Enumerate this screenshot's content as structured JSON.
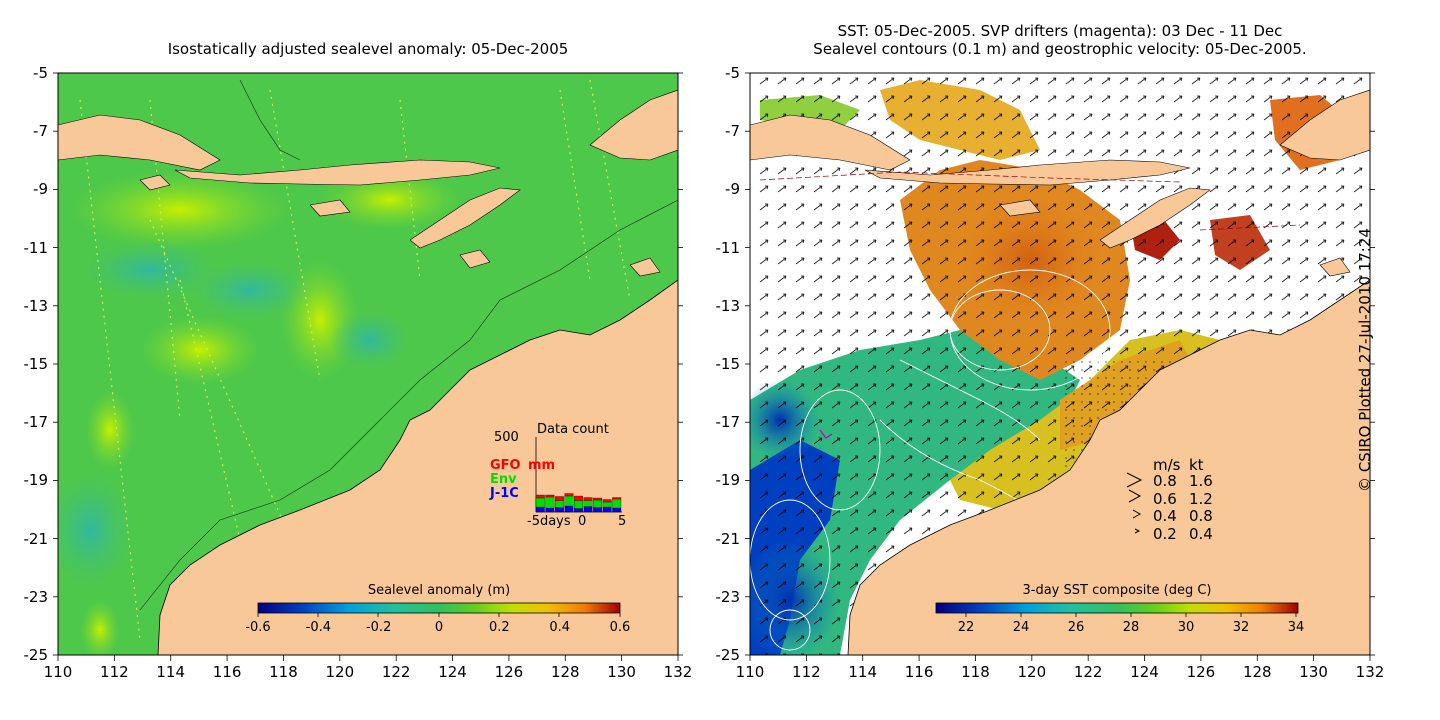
{
  "left_panel": {
    "title": "Isostatically adjusted sealevel anomaly: 05-Dec-2005",
    "colorbar_label": "Sealevel anomaly (m)",
    "colorbar_ticks": [
      "-0.6",
      "-0.4",
      "-0.2",
      "0",
      "0.2",
      "0.4",
      "0.6"
    ],
    "colormap": [
      "#000080",
      "#0040c0",
      "#00a0e0",
      "#20c0a0",
      "#30c060",
      "#60d020",
      "#c0e000",
      "#f0c000",
      "#f08000",
      "#d03000",
      "#a00000"
    ],
    "inset": {
      "title": "Data count",
      "ymax": "500",
      "legend": [
        {
          "name": "GFO",
          "color": "#ff0000"
        },
        {
          "name": "mm",
          "color": "#ff0000"
        },
        {
          "name": "Env",
          "color": "#00dd00"
        },
        {
          "name": "J-1C",
          "color": "#0000ff"
        }
      ],
      "xticks": [
        "-5days",
        "0",
        "5"
      ],
      "bars": [
        {
          "j1": 10,
          "env": 18,
          "gfo": 6
        },
        {
          "j1": 8,
          "env": 22,
          "gfo": 4
        },
        {
          "j1": 9,
          "env": 14,
          "gfo": 8
        },
        {
          "j1": 12,
          "env": 20,
          "gfo": 5
        },
        {
          "j1": 7,
          "env": 16,
          "gfo": 9
        },
        {
          "j1": 11,
          "env": 12,
          "gfo": 6
        },
        {
          "j1": 9,
          "env": 15,
          "gfo": 4
        },
        {
          "j1": 10,
          "env": 10,
          "gfo": 5
        },
        {
          "j1": 8,
          "env": 18,
          "gfo": 3
        }
      ]
    }
  },
  "right_panel": {
    "title_line1": "SST: 05-Dec-2005. SVP drifters (magenta): 03 Dec - 11 Dec",
    "title_line2": "Sealevel contours (0.1 m) and geostrophic velocity: 05-Dec-2005.",
    "colorbar_label": "3-day SST composite (deg C)",
    "colorbar_ticks": [
      "22",
      "24",
      "26",
      "28",
      "30",
      "32",
      "34"
    ],
    "colormap": [
      "#000080",
      "#0040c0",
      "#00a0e0",
      "#20c0a0",
      "#30c060",
      "#60d020",
      "#c0e000",
      "#f0c000",
      "#f08000",
      "#d03000",
      "#a00000"
    ],
    "velocity_legend": {
      "header_ms": "m/s",
      "header_kt": "kt",
      "rows": [
        {
          "ms": "0.8",
          "kt": "1.6"
        },
        {
          "ms": "0.6",
          "kt": "1.2"
        },
        {
          "ms": "0.4",
          "kt": "0.8"
        },
        {
          "ms": "0.2",
          "kt": "0.4"
        }
      ]
    }
  },
  "map": {
    "lat_ticks": [
      "-5",
      "-7",
      "-9",
      "-11",
      "-13",
      "-15",
      "-17",
      "-19",
      "-21",
      "-23",
      "-25"
    ],
    "lon_ticks": [
      "110",
      "112",
      "114",
      "116",
      "118",
      "120",
      "122",
      "124",
      "126",
      "128",
      "130",
      "132"
    ],
    "land_color": "#f8c898"
  },
  "credit": "© CSIRO Plotted 27-Jul-2010 17:24"
}
